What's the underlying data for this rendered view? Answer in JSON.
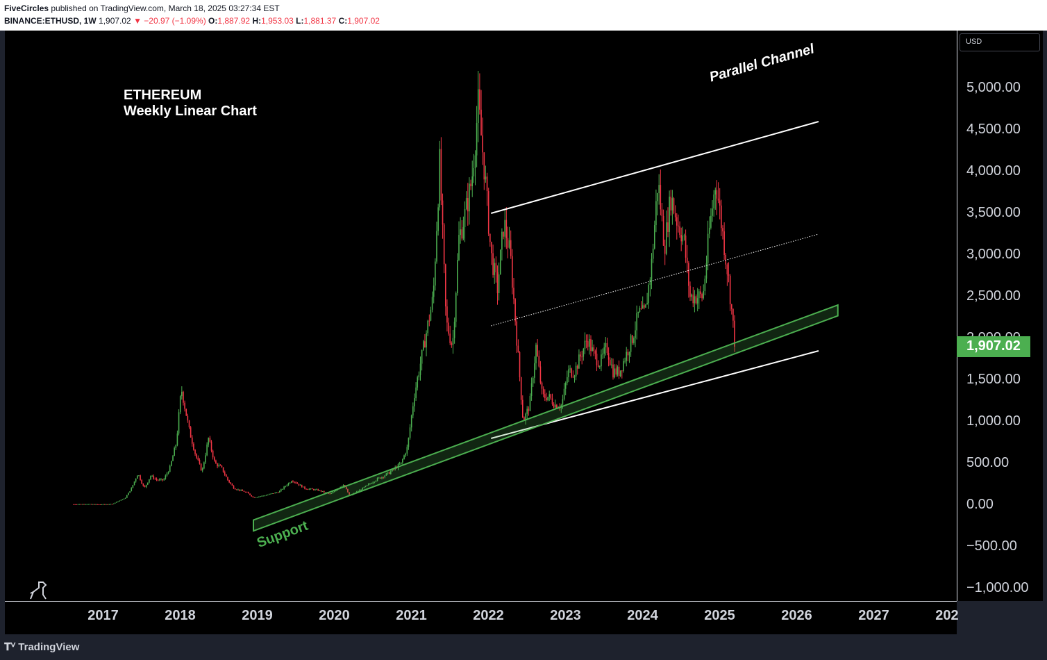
{
  "header": {
    "author": "FiveCircles",
    "published_text": " published on TradingView.com, March 18, 2025 03:27:34 EST",
    "symbol": "BINANCE:ETHUSD, 1W",
    "last_price": "1,907.02",
    "change": "▼ −20.97 (−1.09%)",
    "open_label": "O:",
    "open_value": "1,887.92",
    "high_label": "H:",
    "high_value": "1,953.03",
    "low_label": "L:",
    "low_value": "1,881.37",
    "close_label": "C:",
    "close_value": "1,907.02"
  },
  "currency_label": "USD",
  "footer": {
    "brand": "TradingView"
  },
  "colors": {
    "up": "#4caf50",
    "down": "#f23645",
    "support": "#4caf50",
    "channel": "#ffffff",
    "background": "#000000"
  },
  "chart_data": {
    "type": "candlestick",
    "title": "ETHEREUM",
    "subtitle": "Weekly Linear Chart",
    "xlabel": "",
    "ylabel": "",
    "x_ticks": [
      "2017",
      "2018",
      "2019",
      "2020",
      "2021",
      "2022",
      "2023",
      "2024",
      "2025",
      "2026",
      "2027",
      "202"
    ],
    "y_ticks": [
      "5,000.00",
      "4,500.00",
      "4,000.00",
      "3,500.00",
      "3,000.00",
      "2,500.00",
      "2,000.00",
      "1,500.00",
      "1,000.00",
      "500.00",
      "0.00",
      "−500.00",
      "−1,000.00"
    ],
    "ylim": [
      -1000,
      5000
    ],
    "last_price_label": "1,907.02",
    "last_price": 1907.02,
    "price_series": [
      {
        "date": "2016-08",
        "value": 10
      },
      {
        "date": "2016-10",
        "value": 12
      },
      {
        "date": "2016-12",
        "value": 8
      },
      {
        "date": "2017-02",
        "value": 12
      },
      {
        "date": "2017-03",
        "value": 50
      },
      {
        "date": "2017-04",
        "value": 80
      },
      {
        "date": "2017-05",
        "value": 200
      },
      {
        "date": "2017-06",
        "value": 380
      },
      {
        "date": "2017-07",
        "value": 200
      },
      {
        "date": "2017-08",
        "value": 350
      },
      {
        "date": "2017-09",
        "value": 300
      },
      {
        "date": "2017-10",
        "value": 300
      },
      {
        "date": "2017-11",
        "value": 450
      },
      {
        "date": "2017-12",
        "value": 750
      },
      {
        "date": "2018-01-08",
        "value": 1400
      },
      {
        "date": "2018-02",
        "value": 900
      },
      {
        "date": "2018-03",
        "value": 600
      },
      {
        "date": "2018-04",
        "value": 400
      },
      {
        "date": "2018-05",
        "value": 800
      },
      {
        "date": "2018-06",
        "value": 500
      },
      {
        "date": "2018-07",
        "value": 450
      },
      {
        "date": "2018-08",
        "value": 300
      },
      {
        "date": "2018-09",
        "value": 200
      },
      {
        "date": "2018-11",
        "value": 150
      },
      {
        "date": "2018-12",
        "value": 90
      },
      {
        "date": "2019-02",
        "value": 120
      },
      {
        "date": "2019-04",
        "value": 160
      },
      {
        "date": "2019-06",
        "value": 300
      },
      {
        "date": "2019-08",
        "value": 200
      },
      {
        "date": "2019-10",
        "value": 180
      },
      {
        "date": "2019-12",
        "value": 130
      },
      {
        "date": "2020-02",
        "value": 250
      },
      {
        "date": "2020-03",
        "value": 110
      },
      {
        "date": "2020-05",
        "value": 200
      },
      {
        "date": "2020-07",
        "value": 300
      },
      {
        "date": "2020-09",
        "value": 380
      },
      {
        "date": "2020-11",
        "value": 500
      },
      {
        "date": "2020-12",
        "value": 700
      },
      {
        "date": "2021-01",
        "value": 1300
      },
      {
        "date": "2021-02",
        "value": 1700
      },
      {
        "date": "2021-04",
        "value": 2500
      },
      {
        "date": "2021-05",
        "value": 4100
      },
      {
        "date": "2021-06",
        "value": 2200
      },
      {
        "date": "2021-07",
        "value": 1900
      },
      {
        "date": "2021-08",
        "value": 3200
      },
      {
        "date": "2021-09",
        "value": 3500
      },
      {
        "date": "2021-10",
        "value": 3900
      },
      {
        "date": "2021-11",
        "value": 4800
      },
      {
        "date": "2021-12",
        "value": 4000
      },
      {
        "date": "2022-01",
        "value": 3000
      },
      {
        "date": "2022-02",
        "value": 2600
      },
      {
        "date": "2022-03",
        "value": 3400
      },
      {
        "date": "2022-04",
        "value": 3000
      },
      {
        "date": "2022-05",
        "value": 2000
      },
      {
        "date": "2022-06",
        "value": 1000
      },
      {
        "date": "2022-07",
        "value": 1200
      },
      {
        "date": "2022-08",
        "value": 1900
      },
      {
        "date": "2022-09",
        "value": 1300
      },
      {
        "date": "2022-10",
        "value": 1300
      },
      {
        "date": "2022-11",
        "value": 1200
      },
      {
        "date": "2022-12",
        "value": 1200
      },
      {
        "date": "2023-01",
        "value": 1600
      },
      {
        "date": "2023-02",
        "value": 1600
      },
      {
        "date": "2023-03",
        "value": 1800
      },
      {
        "date": "2023-04",
        "value": 2000
      },
      {
        "date": "2023-05",
        "value": 1800
      },
      {
        "date": "2023-06",
        "value": 1700
      },
      {
        "date": "2023-07",
        "value": 1900
      },
      {
        "date": "2023-08",
        "value": 1600
      },
      {
        "date": "2023-09",
        "value": 1600
      },
      {
        "date": "2023-10",
        "value": 1800
      },
      {
        "date": "2023-11",
        "value": 2000
      },
      {
        "date": "2023-12",
        "value": 2300
      },
      {
        "date": "2024-01",
        "value": 2300
      },
      {
        "date": "2024-02",
        "value": 2900
      },
      {
        "date": "2024-03",
        "value": 3900
      },
      {
        "date": "2024-04",
        "value": 3100
      },
      {
        "date": "2024-05",
        "value": 3700
      },
      {
        "date": "2024-06",
        "value": 3400
      },
      {
        "date": "2024-07",
        "value": 3200
      },
      {
        "date": "2024-08",
        "value": 2500
      },
      {
        "date": "2024-09",
        "value": 2500
      },
      {
        "date": "2024-10",
        "value": 2500
      },
      {
        "date": "2024-11",
        "value": 3300
      },
      {
        "date": "2024-12",
        "value": 3900
      },
      {
        "date": "2025-01",
        "value": 3300
      },
      {
        "date": "2025-02",
        "value": 2700
      },
      {
        "date": "2025-03",
        "value": 1907
      }
    ],
    "annotations": [
      {
        "label": "Parallel Channel",
        "type": "upper-channel-line",
        "from": {
          "date": "2022-01",
          "value": 3500
        },
        "to": {
          "date": "2026-04",
          "value": 4600
        }
      },
      {
        "label": "",
        "type": "channel-midline",
        "from": {
          "date": "2022-01",
          "value": 2150
        },
        "to": {
          "date": "2026-04",
          "value": 3250
        }
      },
      {
        "label": "",
        "type": "lower-channel-line",
        "from": {
          "date": "2022-01",
          "value": 800
        },
        "to": {
          "date": "2026-04",
          "value": 1850
        }
      },
      {
        "label": "Support",
        "type": "support-band",
        "from": {
          "date": "2018-12",
          "value": -180
        },
        "to": {
          "date": "2026-07",
          "value": 2400
        },
        "band_width": 130
      }
    ]
  }
}
